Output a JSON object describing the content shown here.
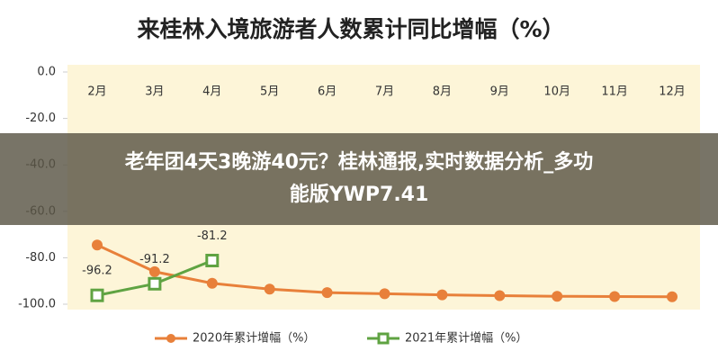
{
  "chart_data": {
    "type": "line",
    "title": "来桂林入境旅游者人数累计同比增幅（%）",
    "categories": [
      "2月",
      "3月",
      "4月",
      "5月",
      "6月",
      "7月",
      "8月",
      "9月",
      "10月",
      "11月",
      "12月"
    ],
    "series": [
      {
        "name": "2020年累计增幅（%）",
        "color": "#e8803a",
        "data_labels": false,
        "values": [
          -74.5,
          -86,
          -91,
          -93.5,
          -95,
          -95.5,
          -96,
          -96.3,
          -96.6,
          -96.7,
          -96.8
        ]
      },
      {
        "name": "2021年累计增幅（%）",
        "color": "#5fa342",
        "data_labels": true,
        "values": [
          -96.2,
          -91.2,
          -81.2,
          null,
          null,
          null,
          null,
          null,
          null,
          null,
          null
        ]
      }
    ],
    "ylim": [
      -100,
      0
    ],
    "yticks": [
      {
        "value": 0,
        "label": "0.0"
      },
      {
        "value": -20,
        "label": "-20.0"
      },
      {
        "value": -40,
        "label": "-40.0"
      },
      {
        "value": -60,
        "label": "-60.0"
      },
      {
        "value": -80,
        "label": "-80.0"
      },
      {
        "value": -100,
        "label": "-100.0"
      }
    ],
    "grid": false,
    "legend": "bottom"
  },
  "overlay": {
    "line1": "老年团4天3晚游40元？桂林通报,实时数据分析_多功",
    "line2": "能版YWP7.41"
  }
}
